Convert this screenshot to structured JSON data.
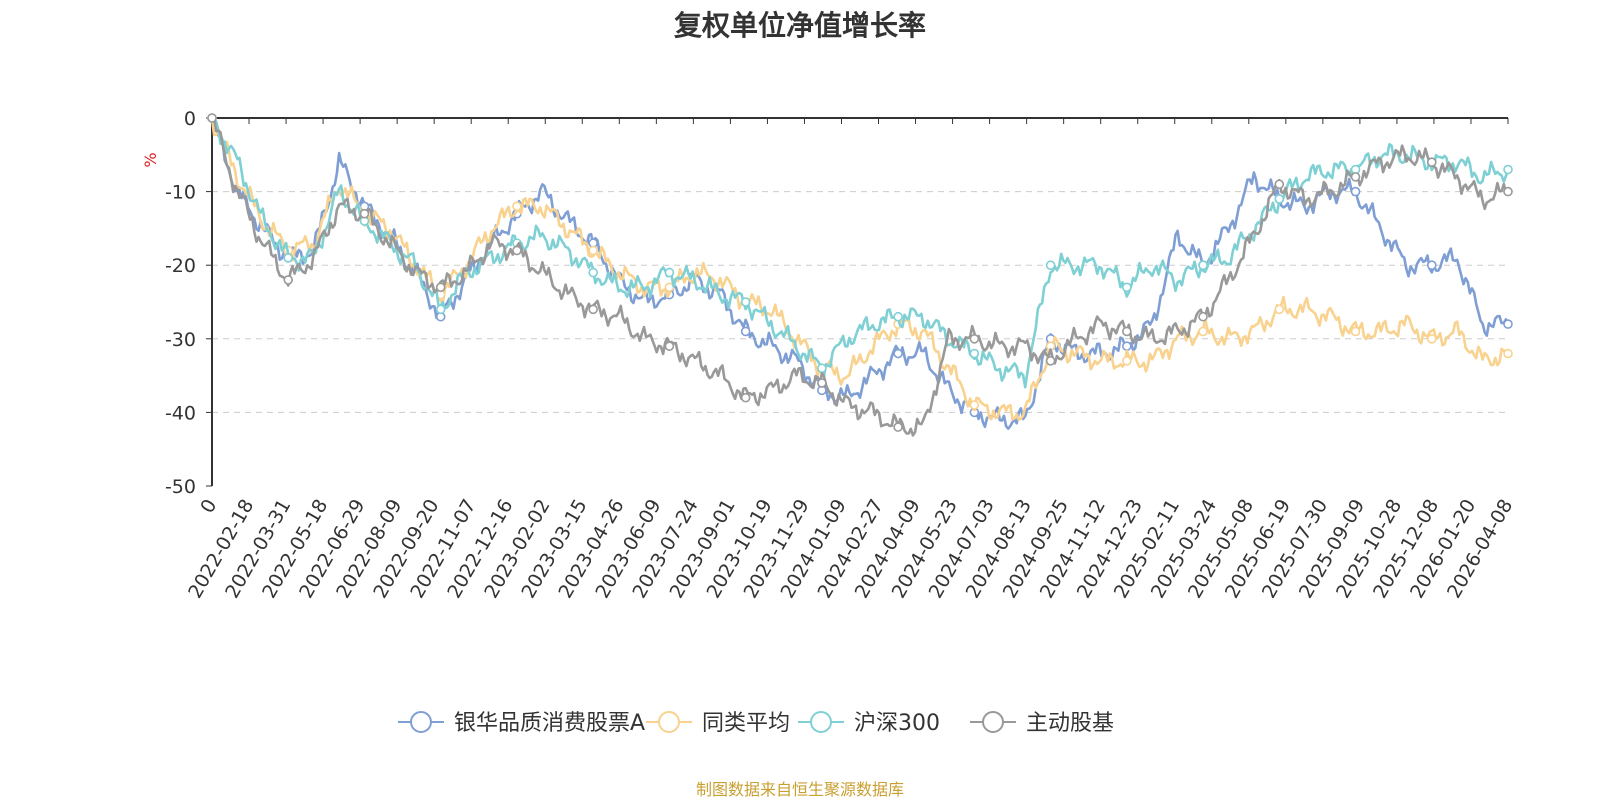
{
  "chart_data": {
    "type": "line",
    "title": "复权单位净值增长率",
    "ylabel": "%",
    "xlabel": "",
    "ylim": [
      -50,
      0
    ],
    "yticks": [
      0,
      -10,
      -20,
      -30,
      -40,
      -50
    ],
    "x_labels": [
      "0",
      "2022-02-18",
      "2022-03-31",
      "2022-05-18",
      "2022-06-29",
      "2022-08-09",
      "2022-09-20",
      "2022-11-07",
      "2022-12-16",
      "2023-02-02",
      "2023-03-15",
      "2023-04-26",
      "2023-06-09",
      "2023-07-24",
      "2023-09-01",
      "2023-10-19",
      "2023-11-29",
      "2024-01-09",
      "2024-02-27",
      "2024-04-09",
      "2024-05-23",
      "2024-07-03",
      "2024-08-13",
      "2024-09-25",
      "2024-11-12",
      "2024-12-23",
      "2025-02-11",
      "2025-03-24",
      "2025-05-08",
      "2025-06-19",
      "2025-07-30",
      "2025-09-09",
      "2025-10-28",
      "2025-12-08",
      "2026-01-20",
      "2026-04-08"
    ],
    "grid": "horizontal dashed",
    "legend_position": "bottom",
    "series": [
      {
        "name": "银华品质消费股票A",
        "color": "#7f9fd4",
        "values": [
          0,
          -10,
          -15,
          -19,
          -18,
          -6,
          -12,
          -16,
          -21,
          -27,
          -22,
          -17,
          -13,
          -10,
          -14,
          -17,
          -22,
          -25,
          -24,
          -22,
          -24,
          -29,
          -31,
          -33,
          -37,
          -38,
          -35,
          -32,
          -32,
          -37,
          -40,
          -41,
          -41,
          -30,
          -32,
          -32,
          -31,
          -28,
          -16,
          -20,
          -15,
          -8,
          -11,
          -12,
          -10,
          -10,
          -15,
          -20,
          -20,
          -19,
          -28,
          -28
        ]
      },
      {
        "name": "同类平均",
        "color": "#f8d28e",
        "values": [
          0,
          -8,
          -14,
          -18,
          -17,
          -9,
          -13,
          -15,
          -20,
          -24,
          -20,
          -15,
          -12,
          -12,
          -15,
          -18,
          -21,
          -23,
          -23,
          -21,
          -22,
          -25,
          -26,
          -30,
          -34,
          -35,
          -31,
          -28,
          -29,
          -34,
          -39,
          -40,
          -40,
          -31,
          -32,
          -33,
          -33,
          -33,
          -30,
          -29,
          -30,
          -29,
          -26,
          -26,
          -27,
          -29,
          -29,
          -28,
          -30,
          -29,
          -33,
          -32
        ]
      },
      {
        "name": "沪深300",
        "color": "#7fd0d4",
        "values": [
          0,
          -6,
          -14,
          -19,
          -19,
          -10,
          -14,
          -17,
          -20,
          -26,
          -21,
          -19,
          -17,
          -16,
          -18,
          -21,
          -23,
          -23,
          -21,
          -22,
          -24,
          -25,
          -28,
          -31,
          -34,
          -30,
          -28,
          -27,
          -27,
          -30,
          -32,
          -34,
          -35,
          -20,
          -20,
          -20,
          -23,
          -20,
          -22,
          -20,
          -19,
          -15,
          -11,
          -8,
          -7,
          -7,
          -5,
          -5,
          -6,
          -6,
          -8,
          -7
        ]
      },
      {
        "name": "主动股基",
        "color": "#999999",
        "values": [
          0,
          -10,
          -17,
          -22,
          -19,
          -12,
          -13,
          -17,
          -21,
          -23,
          -21,
          -17,
          -18,
          -21,
          -24,
          -26,
          -27,
          -30,
          -31,
          -33,
          -35,
          -38,
          -37,
          -35,
          -36,
          -39,
          -40,
          -42,
          -42,
          -30,
          -30,
          -31,
          -31,
          -33,
          -30,
          -28,
          -29,
          -30,
          -29,
          -27,
          -22,
          -16,
          -9,
          -11,
          -10,
          -8,
          -6,
          -5,
          -6,
          -8,
          -11,
          -10
        ]
      }
    ]
  },
  "footer": {
    "source": "制图数据来自恒生聚源数据库"
  }
}
